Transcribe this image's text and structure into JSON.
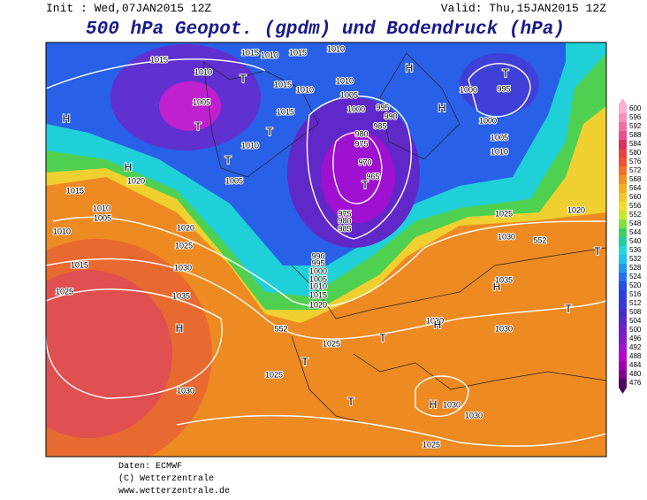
{
  "header": {
    "init": "Init : Wed,07JAN2015 12Z",
    "valid": "Valid: Thu,15JAN2015 12Z",
    "title": "500 hPa Geopot. (gpdm) und Bodendruck (hPa)"
  },
  "map": {
    "labels": [
      "1015",
      "1010",
      "1015",
      "1010",
      "1015",
      "1010",
      "T",
      "1015",
      "1010",
      "1010",
      "1005",
      "1000",
      "995",
      "990",
      "985",
      "980",
      "975",
      "970",
      "965",
      "T",
      "H",
      "H",
      "1000",
      "995",
      "T",
      "1000",
      "1005",
      "1010",
      "1005",
      "T",
      "1015",
      "1010",
      "T",
      "T",
      "1005",
      "1020",
      "H",
      "H",
      "1015",
      "1010",
      "1005",
      "1010",
      "1020",
      "1025",
      "1015",
      "1030",
      "1025",
      "1035",
      "H",
      "975",
      "980",
      "985",
      "990",
      "995",
      "1000",
      "1005",
      "1010",
      "1015",
      "1020",
      "552",
      "1025",
      "T",
      "1025",
      "1030",
      "T",
      "1030",
      "H",
      "T",
      "H",
      "1030",
      "1030",
      "1025",
      "1025",
      "1030",
      "552",
      "1020",
      "H",
      "1035",
      "1030",
      "T",
      "T"
    ]
  },
  "colorbar": {
    "ticks": [
      600,
      596,
      592,
      588,
      584,
      580,
      576,
      572,
      568,
      564,
      560,
      556,
      552,
      548,
      544,
      540,
      536,
      532,
      528,
      524,
      520,
      516,
      512,
      508,
      504,
      500,
      496,
      492,
      488,
      484,
      480,
      476
    ],
    "colors": [
      "#ffb0d0",
      "#f890b8",
      "#f070a0",
      "#e85088",
      "#d83060",
      "#e84040",
      "#f05030",
      "#f07028",
      "#f09020",
      "#f0b020",
      "#f0c828",
      "#f0e030",
      "#c8e830",
      "#80e040",
      "#40d060",
      "#20d0a0",
      "#20d8d8",
      "#20c0f0",
      "#2098f0",
      "#2070f0",
      "#2050e8",
      "#3040e0",
      "#3838d8",
      "#4030c8",
      "#5828c8",
      "#7020c8",
      "#8818c8",
      "#a010d0",
      "#b800d0",
      "#a000b0",
      "#800090",
      "#500060"
    ]
  },
  "footer": {
    "lines": [
      "Daten: ECMWF",
      "(C) Wetterzentrale",
      "www.wetterzentrale.de"
    ]
  }
}
